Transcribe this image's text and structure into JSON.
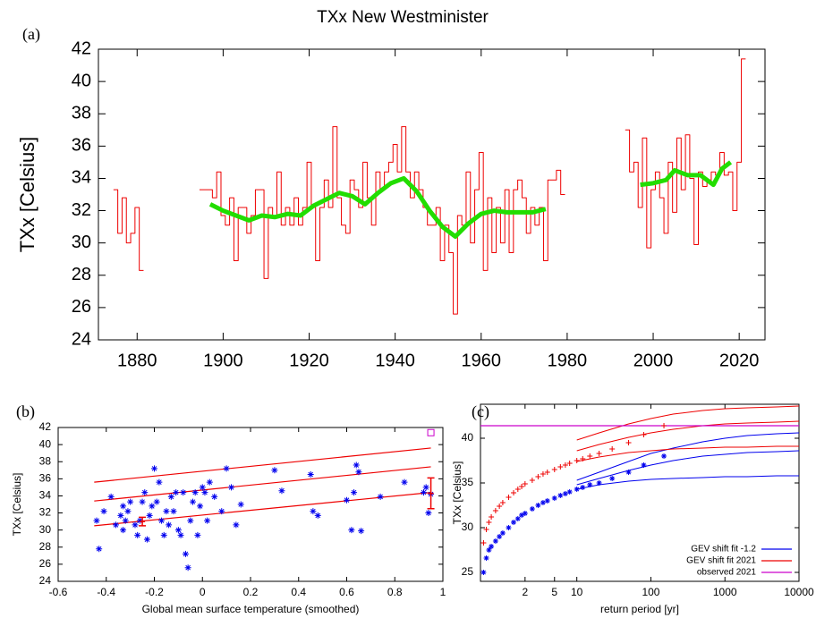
{
  "chart_data": [
    {
      "type": "line",
      "panel_label": "(a)",
      "title": "TXx New Westminister",
      "ylabel": "TXx [Celsius]",
      "xlim": [
        1871,
        2026
      ],
      "xticks": [
        1880,
        1900,
        1920,
        1940,
        1960,
        1980,
        2000,
        2020
      ],
      "ylim": [
        24,
        42
      ],
      "yticks": [
        24,
        26,
        28,
        30,
        32,
        34,
        36,
        38,
        40,
        42
      ],
      "series": [
        {
          "type": "step",
          "color": "#ee0000",
          "x": [
            1875,
            1876,
            1877,
            1878,
            1879,
            1880,
            1881,
            1882,
            1895,
            1896,
            1897,
            1898,
            1899,
            1900,
            1901,
            1902,
            1903,
            1904,
            1905,
            1906,
            1907,
            1908,
            1909,
            1910,
            1911,
            1912,
            1913,
            1914,
            1915,
            1916,
            1917,
            1918,
            1919,
            1920,
            1921,
            1922,
            1923,
            1924,
            1925,
            1926,
            1927,
            1928,
            1929,
            1930,
            1931,
            1932,
            1933,
            1934,
            1935,
            1936,
            1937,
            1938,
            1939,
            1940,
            1941,
            1942,
            1943,
            1944,
            1945,
            1946,
            1947,
            1948,
            1949,
            1950,
            1951,
            1952,
            1953,
            1954,
            1955,
            1956,
            1957,
            1958,
            1959,
            1960,
            1961,
            1962,
            1963,
            1964,
            1965,
            1966,
            1967,
            1968,
            1969,
            1970,
            1971,
            1972,
            1973,
            1974,
            1975,
            1976,
            1977,
            1978,
            1979,
            1980,
            1994,
            1995,
            1996,
            1997,
            1998,
            1999,
            2000,
            2001,
            2002,
            2003,
            2004,
            2005,
            2006,
            2007,
            2008,
            2009,
            2010,
            2011,
            2012,
            2013,
            2014,
            2015,
            2016,
            2017,
            2018,
            2019,
            2020,
            2021
          ],
          "values": [
            33.3,
            30.6,
            32.8,
            30.0,
            30.6,
            32.2,
            28.3,
            null,
            33.3,
            33.3,
            33.3,
            32.8,
            34.4,
            31.7,
            31.1,
            32.8,
            28.9,
            32.2,
            32.2,
            30.6,
            31.7,
            33.3,
            33.3,
            27.8,
            32.2,
            31.7,
            34.4,
            31.1,
            32.2,
            31.1,
            32.8,
            31.1,
            32.2,
            35.0,
            32.2,
            28.9,
            32.2,
            33.9,
            32.2,
            37.2,
            32.8,
            31.1,
            30.6,
            33.9,
            33.3,
            32.2,
            35.0,
            32.8,
            31.1,
            34.4,
            33.3,
            34.4,
            35.0,
            36.1,
            34.4,
            37.2,
            34.4,
            32.8,
            34.4,
            33.3,
            32.2,
            31.1,
            31.1,
            32.2,
            28.9,
            31.1,
            29.4,
            25.6,
            31.7,
            31.1,
            34.4,
            30.0,
            33.3,
            35.6,
            28.3,
            32.8,
            29.4,
            32.2,
            30.0,
            33.3,
            29.4,
            33.3,
            33.9,
            32.8,
            30.6,
            32.2,
            31.1,
            32.2,
            28.9,
            33.9,
            33.9,
            34.5,
            33.0,
            null,
            37.0,
            34.4,
            35.0,
            32.2,
            36.5,
            29.7,
            33.3,
            34.4,
            32.8,
            30.6,
            35.0,
            31.9,
            36.5,
            33.3,
            36.7,
            34.0,
            29.9,
            34.4,
            33.5,
            33.9,
            34.4,
            34.2,
            35.6,
            34.2,
            34.4,
            32.0,
            35.0,
            41.4
          ]
        },
        {
          "type": "line",
          "color": "#22dd00",
          "x": [
            1897,
            1900,
            1903,
            1906,
            1909,
            1912,
            1915,
            1918,
            1921,
            1924,
            1927,
            1930,
            1933,
            1936,
            1939,
            1942,
            1945,
            1948,
            1951,
            1954,
            1957,
            1960,
            1963,
            1966,
            1969,
            1972,
            1975,
            1986,
            1997,
            2000,
            2003,
            2005,
            2008,
            2011,
            2014,
            2016,
            2018
          ],
          "values": [
            32.4,
            32.0,
            31.7,
            31.4,
            31.7,
            31.6,
            31.8,
            31.7,
            32.3,
            32.7,
            33.1,
            32.9,
            32.4,
            33.1,
            33.7,
            34.0,
            33.2,
            32.0,
            31.0,
            30.4,
            31.2,
            31.8,
            32.0,
            31.9,
            31.9,
            31.9,
            32.1,
            null,
            33.6,
            33.7,
            33.9,
            34.5,
            34.2,
            34.2,
            33.6,
            34.6,
            35.0
          ]
        }
      ]
    },
    {
      "type": "scatter",
      "panel_label": "(b)",
      "ylabel": "TXx [Celsius]",
      "xlabel": "Global mean surface temperature (smoothed)",
      "xlim": [
        -0.6,
        1.0
      ],
      "xticks": [
        -0.6,
        -0.4,
        -0.2,
        0,
        0.2,
        0.4,
        0.6,
        0.8,
        1
      ],
      "ylim": [
        24,
        42
      ],
      "yticks": [
        24,
        26,
        28,
        30,
        32,
        34,
        36,
        38,
        40,
        42
      ],
      "series": [
        {
          "type": "line",
          "color": "#ee0000",
          "x": [
            -0.45,
            0.95
          ],
          "values": [
            30.5,
            34.4
          ]
        },
        {
          "type": "line",
          "color": "#ee0000",
          "x": [
            -0.45,
            0.95
          ],
          "values": [
            33.4,
            37.4
          ]
        },
        {
          "type": "line",
          "color": "#ee0000",
          "x": [
            -0.45,
            0.95
          ],
          "values": [
            35.6,
            39.6
          ]
        },
        {
          "type": "scatter",
          "marker": "star",
          "color": "#0000ee",
          "x": [
            -0.44,
            -0.43,
            -0.41,
            -0.38,
            -0.36,
            -0.34,
            -0.33,
            -0.33,
            -0.32,
            -0.31,
            -0.3,
            -0.28,
            -0.27,
            -0.26,
            -0.25,
            -0.24,
            -0.23,
            -0.22,
            -0.21,
            -0.2,
            -0.19,
            -0.18,
            -0.17,
            -0.16,
            -0.15,
            -0.14,
            -0.13,
            -0.12,
            -0.11,
            -0.1,
            -0.09,
            -0.08,
            -0.07,
            -0.06,
            -0.05,
            -0.04,
            -0.03,
            -0.02,
            -0.01,
            0.0,
            0.01,
            0.02,
            0.03,
            0.05,
            0.08,
            0.1,
            0.12,
            0.14,
            0.16,
            0.3,
            0.33,
            0.45,
            0.46,
            0.48,
            0.6,
            0.62,
            0.63,
            0.64,
            0.65,
            0.66,
            0.74,
            0.84,
            0.92,
            0.93,
            0.94,
            0.95
          ],
          "values": [
            31.1,
            27.8,
            32.2,
            33.9,
            30.6,
            31.7,
            32.8,
            30.0,
            31.1,
            32.2,
            33.3,
            30.6,
            29.4,
            31.1,
            33.3,
            34.4,
            28.9,
            31.7,
            32.8,
            37.2,
            33.3,
            35.6,
            31.1,
            29.4,
            32.2,
            30.6,
            33.9,
            32.2,
            34.4,
            30.0,
            29.4,
            34.4,
            27.2,
            25.6,
            31.1,
            33.3,
            34.4,
            29.4,
            32.8,
            35.0,
            34.4,
            31.1,
            35.6,
            33.9,
            32.2,
            37.2,
            35.0,
            30.6,
            33.0,
            37.0,
            34.6,
            36.5,
            32.2,
            31.7,
            33.5,
            30.0,
            34.4,
            37.6,
            36.8,
            29.9,
            33.9,
            35.6,
            34.4,
            35.0,
            32.0,
            34.2
          ]
        },
        {
          "type": "scatter",
          "marker": "square",
          "color": "#cc00cc",
          "x": [
            0.95
          ],
          "values": [
            41.4
          ]
        }
      ],
      "error_bars": [
        {
          "x": -0.25,
          "value": 31.0,
          "error": 0.5
        },
        {
          "x": 0.95,
          "value": 34.3,
          "error": 1.8
        }
      ]
    },
    {
      "type": "return_period",
      "panel_label": "(c)",
      "ylabel": "TXx [Celsius]",
      "xlabel": "return period [yr]",
      "xscale": "log",
      "xlim": [
        0.5,
        10000
      ],
      "xticks": [
        2,
        5,
        10,
        100,
        1000,
        10000
      ],
      "ylim": [
        24,
        43.8
      ],
      "yticks": [
        25,
        30,
        35,
        40
      ],
      "series": [
        {
          "type": "fit",
          "name": "GEV shift fit -1.2",
          "color": "#0000ee",
          "x": [
            10,
            20,
            50,
            100,
            200,
            500,
            1000,
            2000,
            5000,
            10000
          ],
          "values": [
            34.8,
            35.5,
            36.4,
            37.0,
            37.5,
            38.0,
            38.2,
            38.4,
            38.5,
            38.6
          ],
          "lower": [
            34.3,
            34.8,
            35.2,
            35.4,
            35.5,
            35.6,
            35.7,
            35.7,
            35.8,
            35.8
          ],
          "upper": [
            35.3,
            36.2,
            37.4,
            38.3,
            38.9,
            39.6,
            40.0,
            40.3,
            40.5,
            40.6
          ]
        },
        {
          "type": "fit",
          "name": "GEV shift fit 2021",
          "color": "#ee0000",
          "x": [
            10,
            20,
            50,
            100,
            200,
            500,
            1000,
            2000,
            5000,
            10000
          ],
          "values": [
            38.6,
            39.3,
            40.1,
            40.6,
            41.0,
            41.4,
            41.6,
            41.7,
            41.8,
            41.9
          ],
          "lower": [
            37.4,
            37.9,
            38.4,
            38.6,
            38.8,
            38.9,
            39.0,
            39.0,
            39.1,
            39.1
          ],
          "upper": [
            39.8,
            40.6,
            41.6,
            42.2,
            42.7,
            43.1,
            43.3,
            43.4,
            43.5,
            43.6
          ]
        },
        {
          "type": "line",
          "name": "observed 2021",
          "color": "#cc00cc",
          "x": [
            0.5,
            10000
          ],
          "values": [
            41.4,
            41.4
          ]
        },
        {
          "type": "scatter",
          "marker": "star",
          "color": "#0000ee",
          "x": [
            0.55,
            0.6,
            0.65,
            0.7,
            0.8,
            0.9,
            1.0,
            1.2,
            1.4,
            1.6,
            1.8,
            2,
            2.5,
            3,
            3.5,
            4,
            5,
            6,
            7,
            8,
            10,
            12,
            15,
            20,
            30,
            50,
            80,
            150
          ],
          "values": [
            25.0,
            26.6,
            27.5,
            27.9,
            28.5,
            29.0,
            29.4,
            30.0,
            30.6,
            31.0,
            31.4,
            31.6,
            32.1,
            32.5,
            32.8,
            33.0,
            33.3,
            33.6,
            33.8,
            34.0,
            34.3,
            34.5,
            34.8,
            35.0,
            35.5,
            36.2,
            37.0,
            38.0
          ]
        },
        {
          "type": "scatter",
          "marker": "plus",
          "color": "#ee0000",
          "x": [
            0.55,
            0.6,
            0.65,
            0.7,
            0.8,
            0.9,
            1.0,
            1.2,
            1.4,
            1.6,
            1.8,
            2,
            2.5,
            3,
            3.5,
            4,
            5,
            6,
            7,
            8,
            10,
            12,
            15,
            20,
            30,
            50,
            80,
            150
          ],
          "values": [
            28.3,
            29.8,
            30.6,
            31.2,
            31.9,
            32.4,
            32.8,
            33.4,
            33.9,
            34.3,
            34.6,
            34.9,
            35.3,
            35.7,
            36.0,
            36.2,
            36.5,
            36.8,
            37.0,
            37.2,
            37.5,
            37.7,
            38.0,
            38.3,
            38.8,
            39.5,
            40.4,
            41.4
          ]
        }
      ]
    }
  ]
}
